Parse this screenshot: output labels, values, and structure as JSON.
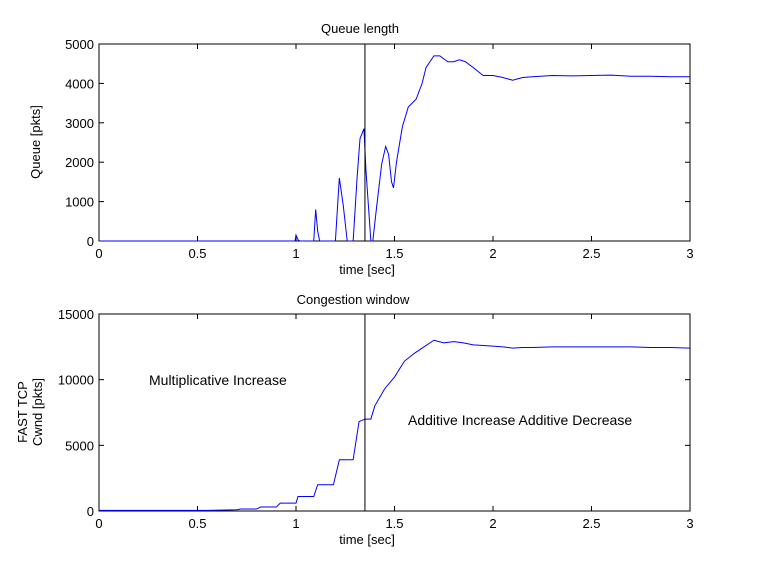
{
  "chart_data": [
    {
      "type": "line",
      "title": "Queue length",
      "xlabel": "time [sec]",
      "ylabel": "Queue [pkts]",
      "xlim": [
        0,
        3
      ],
      "ylim": [
        0,
        5000
      ],
      "xticks": [
        0,
        0.5,
        1,
        1.5,
        2,
        2.5,
        3
      ],
      "xtick_labels": [
        "0",
        "0.5",
        "1",
        "1.5",
        "2",
        "2.5",
        "3"
      ],
      "yticks": [
        0,
        1000,
        2000,
        3000,
        4000,
        5000
      ],
      "ytick_labels": [
        "0",
        "1000",
        "2000",
        "3000",
        "4000",
        "5000"
      ],
      "grid": false,
      "color": "#0000ff",
      "vline_x": 1.35,
      "series": [
        {
          "x": [
            0,
            0.995,
            1.0,
            1.01,
            1.02,
            1.09,
            1.1,
            1.11,
            1.12,
            1.2,
            1.22,
            1.24,
            1.26,
            1.29,
            1.31,
            1.325,
            1.345,
            1.355,
            1.38,
            1.39,
            1.41,
            1.435,
            1.455,
            1.47,
            1.485,
            1.495,
            1.51,
            1.54,
            1.57,
            1.61,
            1.64,
            1.66,
            1.7,
            1.73,
            1.77,
            1.8,
            1.83,
            1.86,
            1.9,
            1.95,
            2.0,
            2.05,
            2.1,
            2.15,
            2.2,
            2.3,
            2.4,
            2.5,
            2.6,
            2.7,
            2.8,
            2.9,
            3.0
          ],
          "y": [
            0,
            0,
            150,
            30,
            0,
            0,
            800,
            250,
            0,
            0,
            1600,
            900,
            0,
            0,
            1600,
            2600,
            2850,
            1800,
            0,
            0,
            900,
            1950,
            2400,
            2200,
            1500,
            1350,
            2000,
            2900,
            3400,
            3600,
            4000,
            4400,
            4700,
            4700,
            4550,
            4550,
            4600,
            4550,
            4400,
            4200,
            4200,
            4150,
            4080,
            4150,
            4170,
            4200,
            4190,
            4200,
            4210,
            4180,
            4180,
            4170,
            4170
          ]
        }
      ]
    },
    {
      "type": "line",
      "title": "Congestion window",
      "xlabel": "time [sec]",
      "ylabel": "FAST TCP\nCwnd [pkts]",
      "xlim": [
        0,
        3
      ],
      "ylim": [
        0,
        15000
      ],
      "xticks": [
        0,
        0.5,
        1,
        1.5,
        2,
        2.5,
        3
      ],
      "xtick_labels": [
        "0",
        "0.5",
        "1",
        "1.5",
        "2",
        "2.5",
        "3"
      ],
      "yticks": [
        0,
        5000,
        10000,
        15000
      ],
      "ytick_labels": [
        "0",
        "5000",
        "10000",
        "15000"
      ],
      "grid": false,
      "color": "#0000ff",
      "vline_x": 1.35,
      "annotations": [
        "Multiplicative Increase",
        "Additive Increase Additive Decrease"
      ],
      "series": [
        {
          "x": [
            0,
            0.55,
            0.65,
            0.7,
            0.72,
            0.8,
            0.82,
            0.9,
            0.92,
            1.0,
            1.01,
            1.09,
            1.11,
            1.19,
            1.22,
            1.29,
            1.32,
            1.35,
            1.38,
            1.4,
            1.45,
            1.5,
            1.55,
            1.6,
            1.65,
            1.7,
            1.75,
            1.8,
            1.85,
            1.9,
            1.95,
            2.0,
            2.05,
            2.1,
            2.15,
            2.2,
            2.3,
            2.4,
            2.5,
            2.6,
            2.7,
            2.8,
            2.9,
            3.0
          ],
          "y": [
            50,
            50,
            80,
            100,
            150,
            150,
            300,
            300,
            600,
            600,
            1100,
            1100,
            2000,
            2000,
            3900,
            3900,
            6800,
            7000,
            7000,
            8000,
            9300,
            10200,
            11400,
            12000,
            12500,
            13000,
            12800,
            12900,
            12800,
            12650,
            12600,
            12550,
            12500,
            12400,
            12450,
            12450,
            12500,
            12500,
            12500,
            12500,
            12500,
            12450,
            12450,
            12400
          ]
        }
      ]
    }
  ]
}
